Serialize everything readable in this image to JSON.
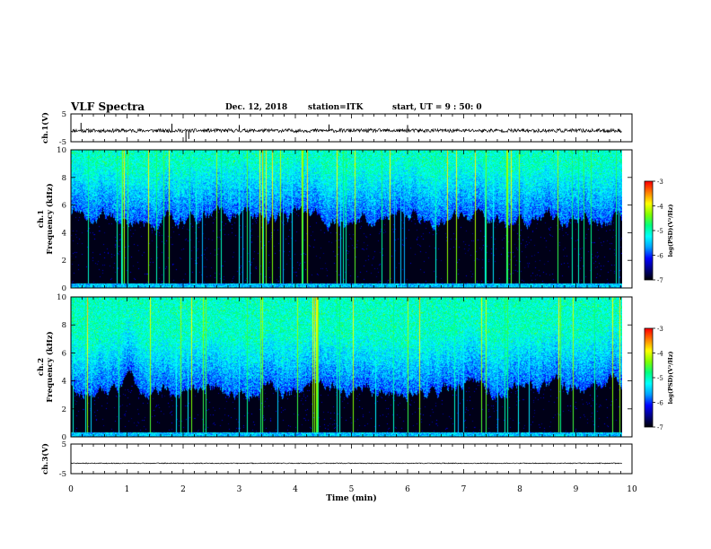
{
  "header": {
    "title": "VLF Spectra",
    "date": "Dec. 12, 2018",
    "station": "station=ITK",
    "start": "start, UT =  9 : 50: 0"
  },
  "chart_data": [
    {
      "type": "line",
      "id": "ch1-waveform",
      "ylabel": "ch.1(V)",
      "ylim": [
        -5,
        5
      ],
      "yticks": [
        "5",
        "-5"
      ],
      "xlim": [
        0,
        10
      ],
      "baseline": -1,
      "spikes": [
        {
          "x": 0.18,
          "y": 1.8
        },
        {
          "x": 1.8,
          "y": 1.5
        },
        {
          "x": 2.05,
          "y": -5
        },
        {
          "x": 2.1,
          "y": -4
        },
        {
          "x": 3.0,
          "y": 1.0
        },
        {
          "x": 4.6,
          "y": 1.2
        },
        {
          "x": 6.0,
          "y": 1.0
        }
      ]
    },
    {
      "type": "heatmap",
      "id": "ch1-spectrogram",
      "ylabel": "ch.1\nFrequency (kHz)",
      "xlim": [
        0,
        10
      ],
      "data_xmax": 9.83,
      "ylim": [
        0,
        10
      ],
      "yticks": [
        "0",
        "2",
        "4",
        "6",
        "8",
        "10"
      ],
      "background_top_khz": 5.0,
      "colorbar": {
        "label": "log(PSD)(V²/Hz)",
        "range": [
          -7,
          -3
        ],
        "ticks": [
          "-3",
          "-4",
          "-5",
          "-6",
          "-7"
        ]
      }
    },
    {
      "type": "heatmap",
      "id": "ch2-spectrogram",
      "ylabel": "ch.2\nFrequency (kHz)",
      "xlim": [
        0,
        10
      ],
      "data_xmax": 9.83,
      "ylim": [
        0,
        10
      ],
      "yticks": [
        "0",
        "2",
        "4",
        "6",
        "8",
        "10"
      ],
      "background_top_khz": 3.5,
      "colorbar": {
        "label": "log(PSD)(V²/Hz)",
        "range": [
          -7,
          -3
        ],
        "ticks": [
          "-3",
          "-4",
          "-5",
          "-6",
          "-7"
        ]
      }
    },
    {
      "type": "line",
      "id": "ch3-waveform",
      "ylabel": "ch.3(V)",
      "ylim": [
        -5,
        5
      ],
      "yticks": [
        "5",
        "-5"
      ],
      "xlim": [
        0,
        10
      ],
      "baseline": -1.5,
      "xlabel": "Time (min)",
      "xticks": [
        "0",
        "1",
        "2",
        "3",
        "4",
        "5",
        "6",
        "7",
        "8",
        "9",
        "10"
      ]
    }
  ],
  "colormap": [
    "#000000",
    "#000080",
    "#0000ff",
    "#00a0ff",
    "#00ffff",
    "#00ff80",
    "#80ff00",
    "#ffff00",
    "#ff8000",
    "#ff0000",
    "#ffffff"
  ]
}
